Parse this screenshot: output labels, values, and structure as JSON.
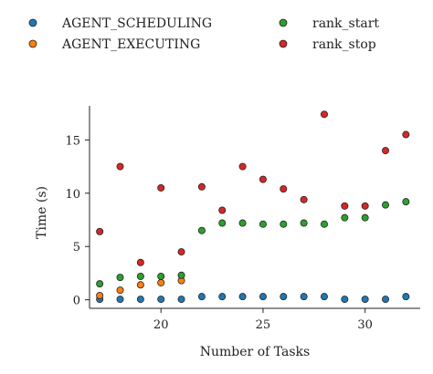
{
  "chart_data": {
    "type": "scatter",
    "xlabel": "Number of Tasks",
    "ylabel": "Time (s)",
    "xlim": [
      16.5,
      32.7
    ],
    "ylim": [
      -0.8,
      18.2
    ],
    "xticks": [
      20,
      25,
      30
    ],
    "yticks": [
      0,
      5,
      10,
      15
    ],
    "legend_placement": "top",
    "grid": false,
    "x": [
      17,
      18,
      19,
      20,
      21,
      22,
      23,
      24,
      25,
      26,
      27,
      28,
      29,
      30,
      31,
      32
    ],
    "series": [
      {
        "name": "AGENT_SCHEDULING",
        "color": "#1f77b4",
        "values": [
          0.05,
          0.05,
          0.05,
          0.05,
          0.05,
          0.3,
          0.3,
          0.3,
          0.3,
          0.3,
          0.3,
          0.3,
          0.05,
          0.05,
          0.05,
          0.3
        ]
      },
      {
        "name": "AGENT_EXECUTING",
        "color": "#ff7f0e",
        "values": [
          0.4,
          0.9,
          1.4,
          1.6,
          1.8,
          null,
          null,
          null,
          null,
          null,
          null,
          null,
          null,
          null,
          null,
          null
        ]
      },
      {
        "name": "rank_start",
        "color": "#2ca02c",
        "values": [
          1.5,
          2.1,
          2.2,
          2.2,
          2.3,
          6.5,
          7.2,
          7.2,
          7.1,
          7.1,
          7.2,
          7.1,
          7.7,
          7.7,
          8.9,
          9.2
        ]
      },
      {
        "name": "rank_stop",
        "color": "#d62728",
        "values": [
          6.4,
          12.5,
          3.5,
          10.5,
          4.5,
          10.6,
          8.4,
          12.5,
          11.3,
          10.4,
          9.4,
          17.4,
          8.8,
          8.8,
          14.0,
          15.5
        ]
      }
    ]
  }
}
